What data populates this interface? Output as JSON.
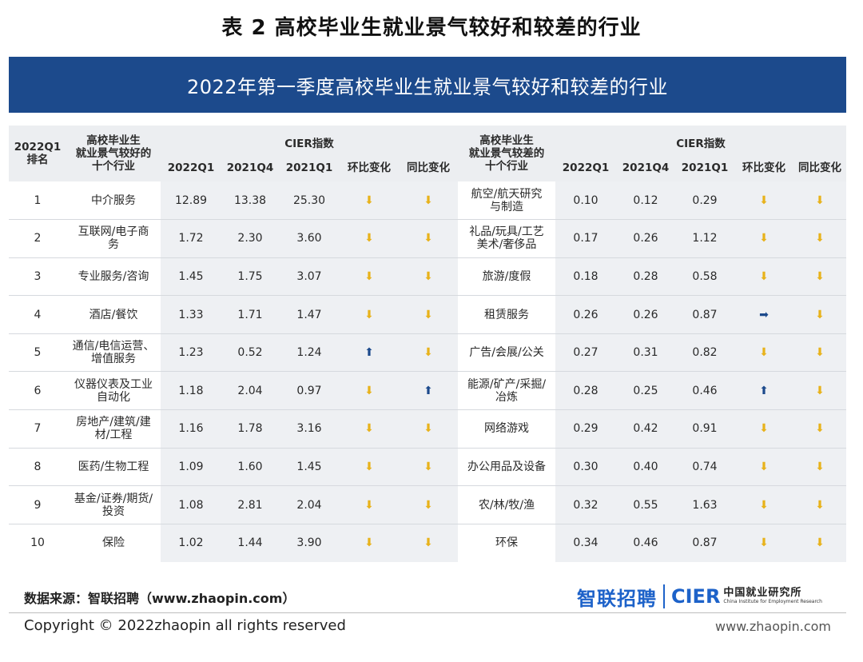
{
  "title": "表 2  高校毕业生就业景气较好和较差的行业",
  "banner": "2022年第一季度高校毕业生就业景气较好和较差的行业",
  "header": {
    "rank_col": [
      "2022Q1",
      "排名"
    ],
    "good_col": [
      "高校毕业生",
      "就业景气较好的",
      "十个行业"
    ],
    "bad_col": [
      "高校毕业生",
      "就业景气较差的",
      "十个行业"
    ],
    "cier_group": "CIER指数",
    "q2022": "2022Q1",
    "q2021q4": "2021Q4",
    "q2021q1": "2021Q1",
    "qoq": "环比变化",
    "yoy": "同比变化"
  },
  "rows": [
    {
      "rank": "1",
      "good": [
        "中介服务"
      ],
      "g1": "12.89",
      "g2": "13.38",
      "g3": "25.30",
      "gqoq": "down",
      "gyoy": "down",
      "bad": [
        "航空/航天研究",
        "与制造"
      ],
      "b1": "0.10",
      "b2": "0.12",
      "b3": "0.29",
      "bqoq": "down",
      "byoy": "down"
    },
    {
      "rank": "2",
      "good": [
        "互联网/电子商",
        "务"
      ],
      "g1": "1.72",
      "g2": "2.30",
      "g3": "3.60",
      "gqoq": "down",
      "gyoy": "down",
      "bad": [
        "礼品/玩具/工艺",
        "美术/奢侈品"
      ],
      "b1": "0.17",
      "b2": "0.26",
      "b3": "1.12",
      "bqoq": "down",
      "byoy": "down"
    },
    {
      "rank": "3",
      "good": [
        "专业服务/咨询"
      ],
      "g1": "1.45",
      "g2": "1.75",
      "g3": "3.07",
      "gqoq": "down",
      "gyoy": "down",
      "bad": [
        "旅游/度假"
      ],
      "b1": "0.18",
      "b2": "0.28",
      "b3": "0.58",
      "bqoq": "down",
      "byoy": "down"
    },
    {
      "rank": "4",
      "good": [
        "酒店/餐饮"
      ],
      "g1": "1.33",
      "g2": "1.71",
      "g3": "1.47",
      "gqoq": "down",
      "gyoy": "down",
      "bad": [
        "租赁服务"
      ],
      "b1": "0.26",
      "b2": "0.26",
      "b3": "0.87",
      "bqoq": "right",
      "byoy": "down"
    },
    {
      "rank": "5",
      "good": [
        "通信/电信运营、",
        "增值服务"
      ],
      "g1": "1.23",
      "g2": "0.52",
      "g3": "1.24",
      "gqoq": "up",
      "gyoy": "down",
      "bad": [
        "广告/会展/公关"
      ],
      "b1": "0.27",
      "b2": "0.31",
      "b3": "0.82",
      "bqoq": "down",
      "byoy": "down"
    },
    {
      "rank": "6",
      "good": [
        "仪器仪表及工业",
        "自动化"
      ],
      "g1": "1.18",
      "g2": "2.04",
      "g3": "0.97",
      "gqoq": "down",
      "gyoy": "up",
      "bad": [
        "能源/矿产/采掘/",
        "冶炼"
      ],
      "b1": "0.28",
      "b2": "0.25",
      "b3": "0.46",
      "bqoq": "up",
      "byoy": "down"
    },
    {
      "rank": "7",
      "good": [
        "房地产/建筑/建",
        "材/工程"
      ],
      "g1": "1.16",
      "g2": "1.78",
      "g3": "3.16",
      "gqoq": "down",
      "gyoy": "down",
      "bad": [
        "网络游戏"
      ],
      "b1": "0.29",
      "b2": "0.42",
      "b3": "0.91",
      "bqoq": "down",
      "byoy": "down"
    },
    {
      "rank": "8",
      "good": [
        "医药/生物工程"
      ],
      "g1": "1.09",
      "g2": "1.60",
      "g3": "1.45",
      "gqoq": "down",
      "gyoy": "down",
      "bad": [
        "办公用品及设备"
      ],
      "b1": "0.30",
      "b2": "0.40",
      "b3": "0.74",
      "bqoq": "down",
      "byoy": "down"
    },
    {
      "rank": "9",
      "good": [
        "基金/证券/期货/",
        "投资"
      ],
      "g1": "1.08",
      "g2": "2.81",
      "g3": "2.04",
      "gqoq": "down",
      "gyoy": "down",
      "bad": [
        "农/林/牧/渔"
      ],
      "b1": "0.32",
      "b2": "0.55",
      "b3": "1.63",
      "bqoq": "down",
      "byoy": "down"
    },
    {
      "rank": "10",
      "good": [
        "保险"
      ],
      "g1": "1.02",
      "g2": "1.44",
      "g3": "3.90",
      "gqoq": "down",
      "gyoy": "down",
      "bad": [
        "环保"
      ],
      "b1": "0.34",
      "b2": "0.46",
      "b3": "0.87",
      "bqoq": "down",
      "byoy": "down"
    }
  ],
  "footer": {
    "source": "数据来源：智联招聘（www.zhaopin.com）",
    "logo_zhilian": "智联招聘",
    "logo_cier": "CIER",
    "logo_cier_cn": "中国就业研究所",
    "logo_cier_en": "China Institute for Employment Research",
    "copyright": "Copyright ©  2022zhaopin all rights reserved",
    "site": "www.zhaopin.com"
  },
  "colors": {
    "banner": "#1c4a8c",
    "arrow_down": "#e8b21a",
    "arrow_up": "#1c4a8c",
    "header_bg": "#eceef1",
    "logo_blue": "#1d62c9"
  },
  "icons": {
    "down": "arrow-down-icon",
    "up": "arrow-up-icon",
    "right": "arrow-right-icon"
  }
}
